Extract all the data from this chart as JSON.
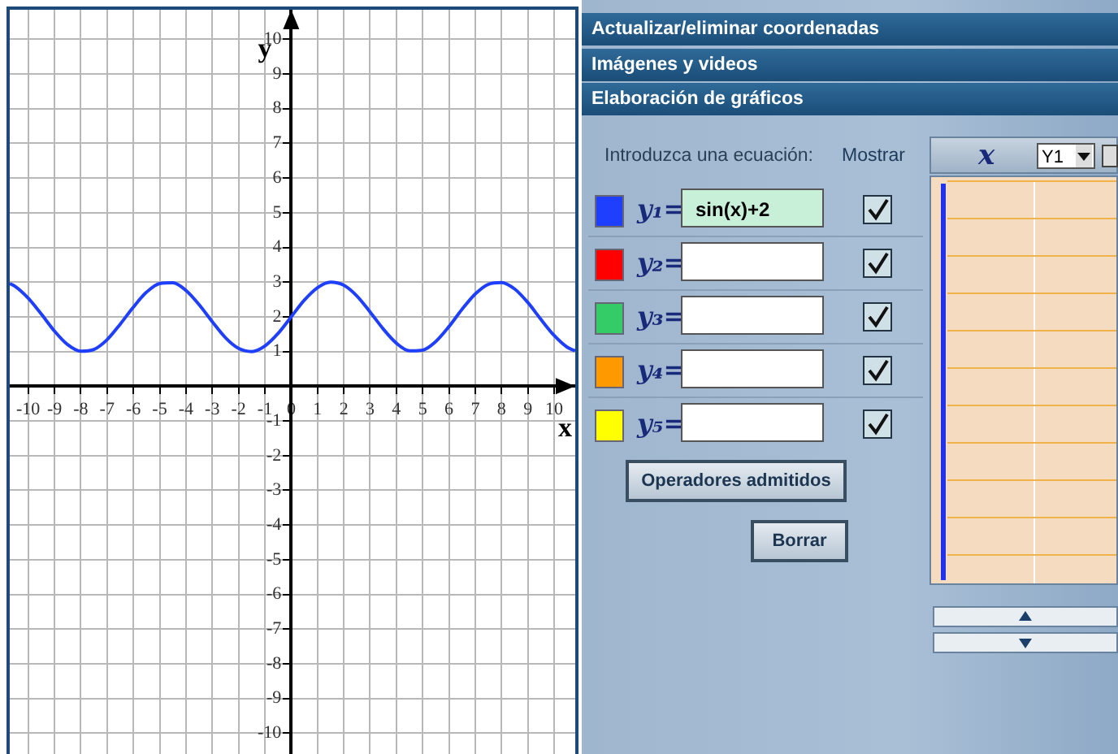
{
  "chart_data": {
    "type": "line",
    "xlabel": "x",
    "ylabel": "y",
    "xlim": [
      -10.7,
      10.8
    ],
    "ylim": [
      -10.6,
      10.85
    ],
    "xticks": [
      -10,
      -9,
      -8,
      -7,
      -6,
      -5,
      -4,
      -3,
      -2,
      -1,
      0,
      1,
      2,
      3,
      4,
      5,
      6,
      7,
      8,
      9,
      10
    ],
    "yticks": [
      -10,
      -9,
      -8,
      -7,
      -6,
      -5,
      -4,
      -3,
      -2,
      -1,
      1,
      2,
      3,
      4,
      5,
      6,
      7,
      8,
      9,
      10
    ],
    "grid": true,
    "series": [
      {
        "name": "sin(x)+2",
        "color": "#1f3fff",
        "x": [
          -10.7,
          -10.5,
          -10,
          -9.5,
          -9,
          -8.5,
          -8,
          -7.5,
          -7,
          -6.5,
          -6,
          -5.5,
          -5,
          -4.5,
          -4,
          -3.5,
          -3,
          -2.5,
          -2,
          -1.5,
          -1,
          -0.5,
          0,
          0.5,
          1,
          1.5,
          2,
          2.5,
          3,
          3.5,
          4,
          4.5,
          5,
          5.5,
          6,
          6.5,
          7,
          7.5,
          8,
          8.5,
          9,
          9.5,
          10,
          10.5,
          10.8
        ],
        "values": [
          2.96,
          2.88,
          2.54,
          2.08,
          1.59,
          1.2,
          1.01,
          1.06,
          1.34,
          1.79,
          2.28,
          2.71,
          2.96,
          2.98,
          2.76,
          2.35,
          1.86,
          1.4,
          1.09,
          1.0,
          1.16,
          1.52,
          2.0,
          2.48,
          2.84,
          3.0,
          2.91,
          2.6,
          2.14,
          1.65,
          1.24,
          1.02,
          1.04,
          1.29,
          1.72,
          2.22,
          2.66,
          2.94,
          2.99,
          2.8,
          2.41,
          1.92,
          1.46,
          1.12,
          1.02
        ]
      }
    ],
    "annotations": [
      "Actualizar/eliminar coordenadas",
      "Imágenes y videos",
      "Elaboración de gráficos",
      "Introduzca una ecuación:",
      "Mostrar",
      "y₁=",
      "y₂=",
      "y₃=",
      "y₄=",
      "y₅=",
      "Operadores admitidos",
      "Borrar",
      "x",
      "Y1"
    ]
  }
}
